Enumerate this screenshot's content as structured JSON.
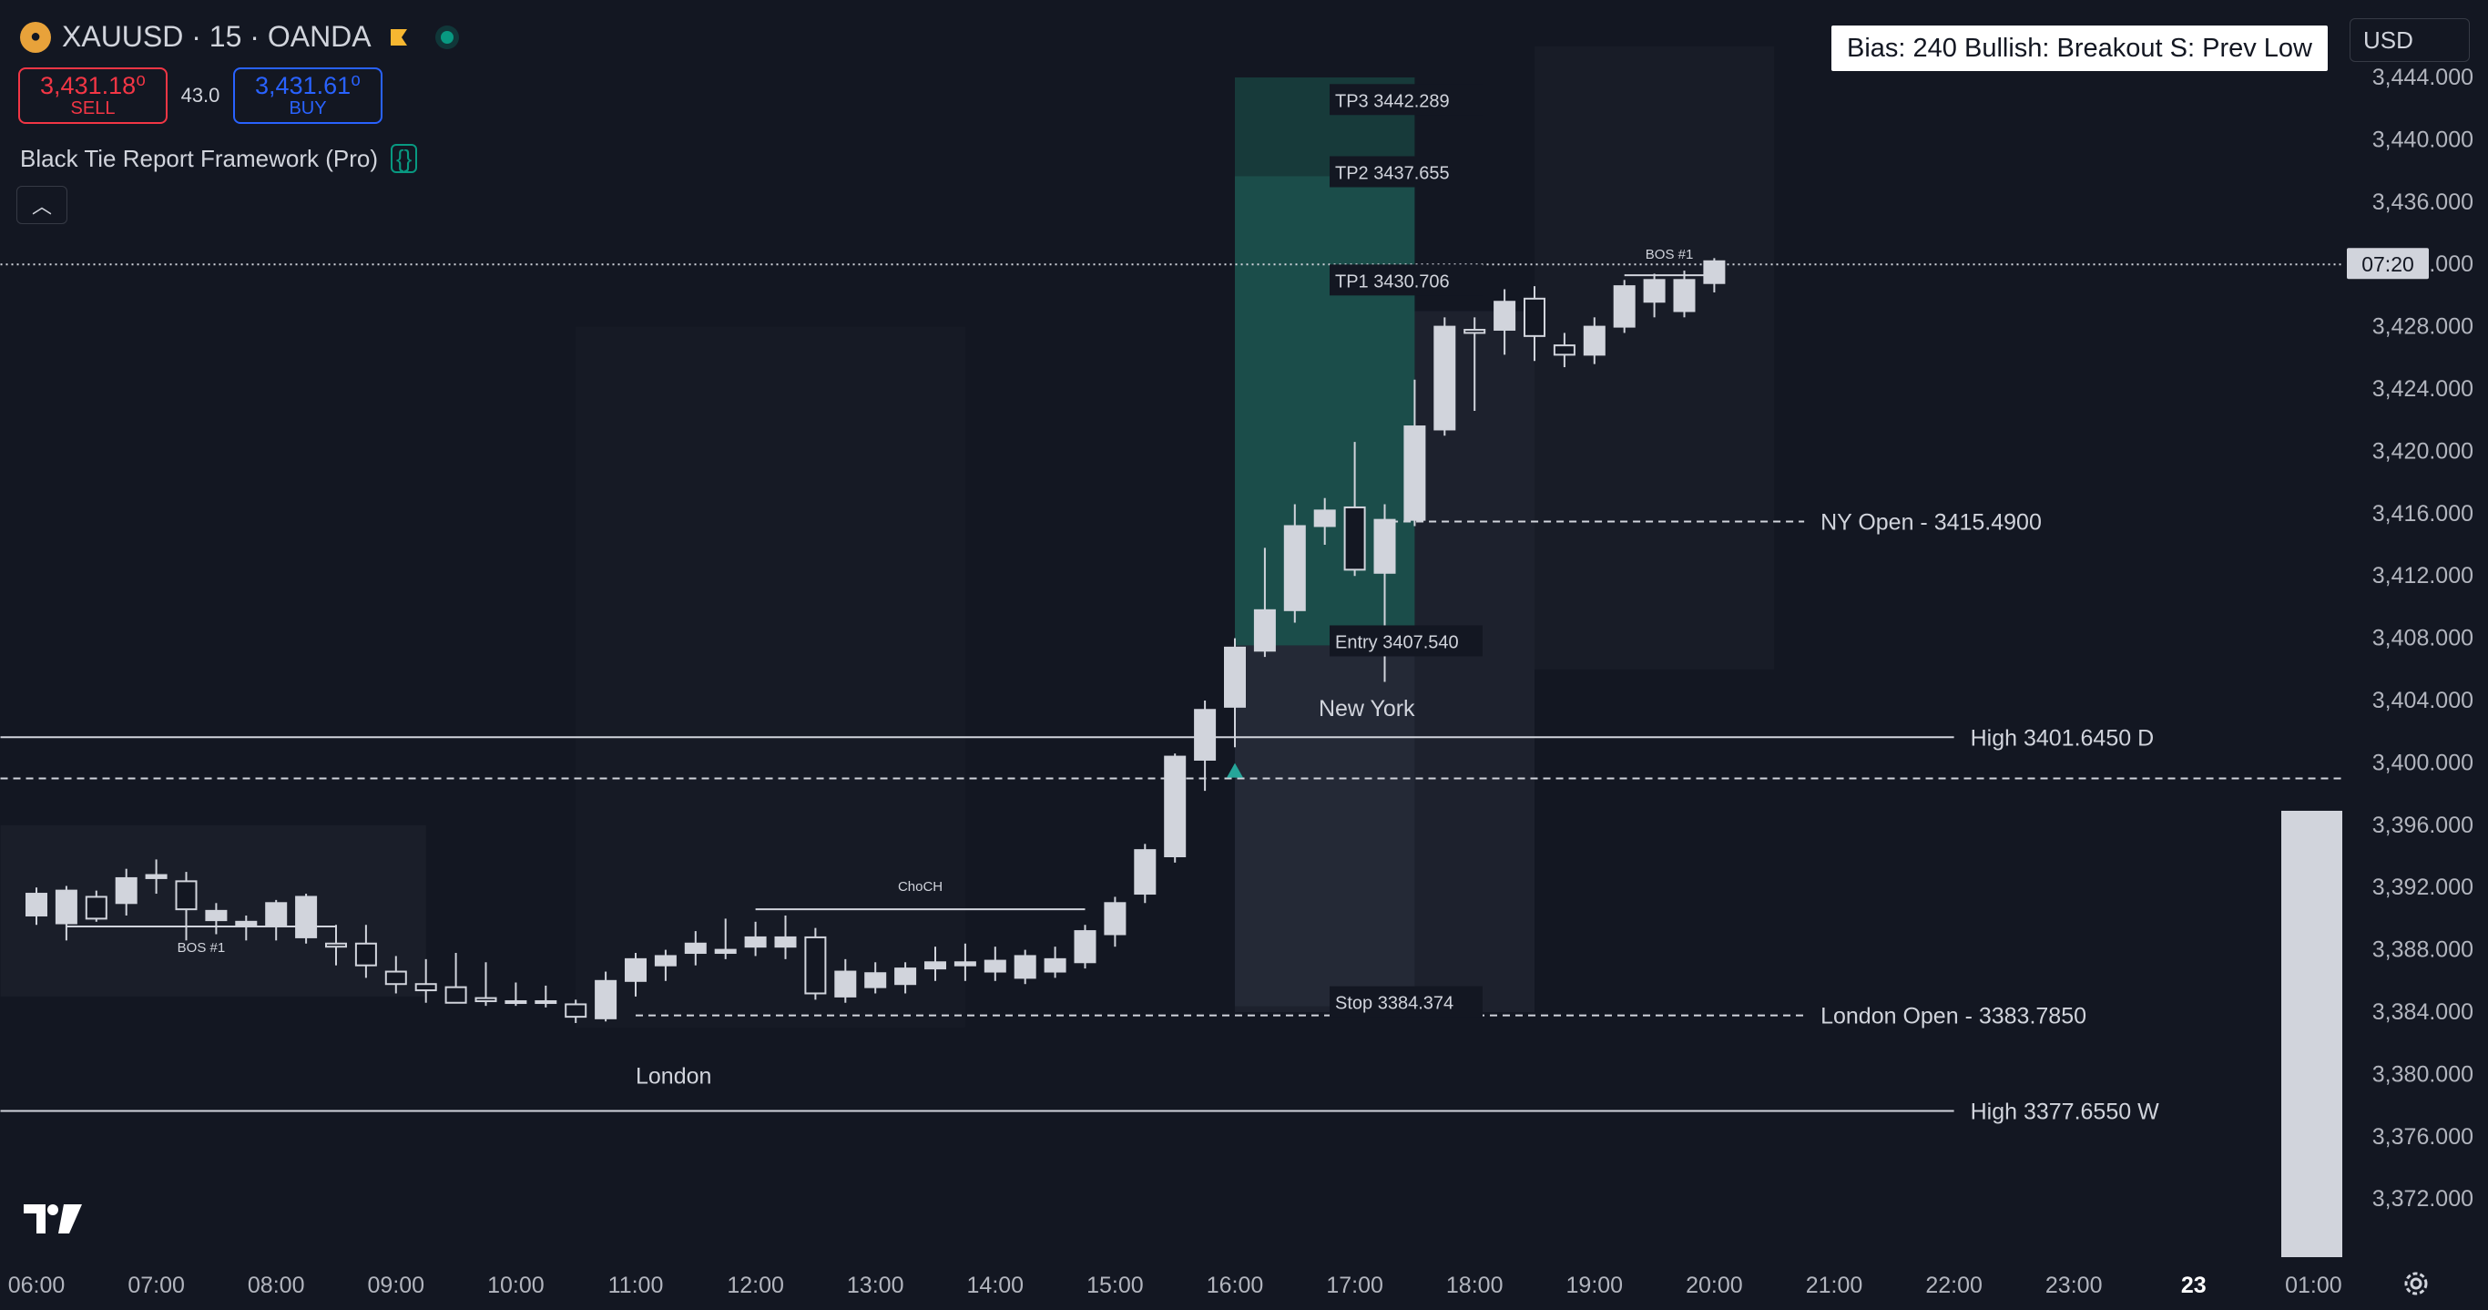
{
  "header": {
    "symbol": "XAUUSD · 15 · OANDA",
    "symbol_icon": "gold-coin-icon",
    "live_icon": "market-open-dot-icon"
  },
  "trade": {
    "sell_price": "3,431.18⁰",
    "sell_label": "SELL",
    "spread": "43.0",
    "buy_price": "3,431.61⁰",
    "buy_label": "BUY"
  },
  "indicator": {
    "name": "Black Tie Report Framework (Pro)",
    "icon": "script-braces-icon"
  },
  "bias_box": "Bias: 240  Bullish: Breakout  S: Prev Low",
  "currency": "USD",
  "countdown": "07:20",
  "colors": {
    "background": "#131722",
    "text": "#d1d4dc",
    "sell": "#f23645",
    "buy": "#2962ff",
    "accent_green": "#089981",
    "candle": "#d1d4dc",
    "tp_zone": "#1b4d4a"
  },
  "chart_data": {
    "type": "candlestick",
    "symbol": "XAUUSD",
    "timeframe": "15",
    "ylim": [
      3368,
      3446
    ],
    "y_ticks": [
      "3,444.000",
      "3,440.000",
      "3,436.000",
      "3,432.000",
      "3,428.000",
      "3,424.000",
      "3,420.000",
      "3,416.000",
      "3,412.000",
      "3,408.000",
      "3,404.000",
      "3,400.000",
      "3,396.000",
      "3,392.000",
      "3,388.000",
      "3,384.000",
      "3,380.000",
      "3,376.000",
      "3,372.000"
    ],
    "y_tick_values": [
      3444,
      3440,
      3436,
      3432,
      3428,
      3424,
      3420,
      3416,
      3412,
      3408,
      3404,
      3400,
      3396,
      3392,
      3388,
      3384,
      3380,
      3376,
      3372
    ],
    "x_ticks": [
      "06:00",
      "07:00",
      "08:00",
      "09:00",
      "10:00",
      "11:00",
      "12:00",
      "13:00",
      "14:00",
      "15:00",
      "16:00",
      "17:00",
      "18:00",
      "19:00",
      "20:00",
      "21:00",
      "22:00",
      "23:00",
      "23",
      "01:00"
    ],
    "x_tick_hours": [
      6,
      7,
      8,
      9,
      10,
      11,
      12,
      13,
      14,
      15,
      16,
      17,
      18,
      19,
      20,
      21,
      22,
      23,
      24,
      25
    ],
    "candles": [
      {
        "t": 6.0,
        "o": 3390.2,
        "h": 3392.0,
        "l": 3389.6,
        "c": 3391.6
      },
      {
        "t": 6.25,
        "o": 3389.7,
        "h": 3392.1,
        "l": 3388.6,
        "c": 3391.8
      },
      {
        "t": 6.5,
        "o": 3391.4,
        "h": 3391.8,
        "l": 3389.8,
        "c": 3390.0
      },
      {
        "t": 6.75,
        "o": 3391.0,
        "h": 3393.2,
        "l": 3390.2,
        "c": 3392.6
      },
      {
        "t": 7.0,
        "o": 3392.6,
        "h": 3393.8,
        "l": 3391.6,
        "c": 3392.8
      },
      {
        "t": 7.25,
        "o": 3392.4,
        "h": 3393.0,
        "l": 3388.6,
        "c": 3390.6
      },
      {
        "t": 7.5,
        "o": 3389.9,
        "h": 3391.0,
        "l": 3389.0,
        "c": 3390.5
      },
      {
        "t": 7.75,
        "o": 3389.6,
        "h": 3390.2,
        "l": 3388.6,
        "c": 3389.8
      },
      {
        "t": 8.0,
        "o": 3389.6,
        "h": 3391.2,
        "l": 3388.6,
        "c": 3391.0
      },
      {
        "t": 8.25,
        "o": 3388.8,
        "h": 3391.6,
        "l": 3388.4,
        "c": 3391.4
      },
      {
        "t": 8.5,
        "o": 3388.4,
        "h": 3389.6,
        "l": 3387.0,
        "c": 3388.2
      },
      {
        "t": 8.75,
        "o": 3388.4,
        "h": 3389.6,
        "l": 3386.2,
        "c": 3387.0
      },
      {
        "t": 9.0,
        "o": 3386.6,
        "h": 3387.6,
        "l": 3385.2,
        "c": 3385.8
      },
      {
        "t": 9.25,
        "o": 3385.8,
        "h": 3387.4,
        "l": 3384.6,
        "c": 3385.4
      },
      {
        "t": 9.5,
        "o": 3385.6,
        "h": 3387.8,
        "l": 3384.6,
        "c": 3384.6
      },
      {
        "t": 9.75,
        "o": 3384.9,
        "h": 3387.2,
        "l": 3384.4,
        "c": 3384.7
      },
      {
        "t": 10.0,
        "o": 3384.7,
        "h": 3385.9,
        "l": 3384.4,
        "c": 3384.7
      },
      {
        "t": 10.25,
        "o": 3384.6,
        "h": 3385.7,
        "l": 3384.3,
        "c": 3384.7
      },
      {
        "t": 10.5,
        "o": 3384.5,
        "h": 3384.8,
        "l": 3383.3,
        "c": 3383.7
      },
      {
        "t": 10.75,
        "o": 3383.6,
        "h": 3386.6,
        "l": 3383.4,
        "c": 3386.0
      },
      {
        "t": 11.0,
        "o": 3386.0,
        "h": 3387.8,
        "l": 3385.0,
        "c": 3387.4
      },
      {
        "t": 11.25,
        "o": 3387.0,
        "h": 3388.0,
        "l": 3386.0,
        "c": 3387.6
      },
      {
        "t": 11.5,
        "o": 3387.8,
        "h": 3389.2,
        "l": 3387.0,
        "c": 3388.4
      },
      {
        "t": 11.75,
        "o": 3387.8,
        "h": 3390.0,
        "l": 3387.4,
        "c": 3388.0
      },
      {
        "t": 12.0,
        "o": 3388.2,
        "h": 3389.8,
        "l": 3387.6,
        "c": 3388.8
      },
      {
        "t": 12.25,
        "o": 3388.2,
        "h": 3390.2,
        "l": 3387.4,
        "c": 3388.8
      },
      {
        "t": 12.5,
        "o": 3388.8,
        "h": 3389.4,
        "l": 3384.8,
        "c": 3385.2
      },
      {
        "t": 12.75,
        "o": 3385.0,
        "h": 3387.4,
        "l": 3384.6,
        "c": 3386.6
      },
      {
        "t": 13.0,
        "o": 3385.6,
        "h": 3387.2,
        "l": 3385.2,
        "c": 3386.5
      },
      {
        "t": 13.25,
        "o": 3385.8,
        "h": 3387.2,
        "l": 3385.2,
        "c": 3386.8
      },
      {
        "t": 13.5,
        "o": 3386.8,
        "h": 3388.2,
        "l": 3386.0,
        "c": 3387.2
      },
      {
        "t": 13.75,
        "o": 3387.0,
        "h": 3388.4,
        "l": 3386.0,
        "c": 3387.2
      },
      {
        "t": 14.0,
        "o": 3386.6,
        "h": 3388.2,
        "l": 3386.0,
        "c": 3387.3
      },
      {
        "t": 14.25,
        "o": 3386.2,
        "h": 3388.0,
        "l": 3385.8,
        "c": 3387.6
      },
      {
        "t": 14.5,
        "o": 3386.6,
        "h": 3388.2,
        "l": 3386.2,
        "c": 3387.4
      },
      {
        "t": 14.75,
        "o": 3387.2,
        "h": 3389.6,
        "l": 3386.8,
        "c": 3389.2
      },
      {
        "t": 15.0,
        "o": 3389.0,
        "h": 3391.4,
        "l": 3388.2,
        "c": 3391.0
      },
      {
        "t": 15.25,
        "o": 3391.6,
        "h": 3394.8,
        "l": 3391.0,
        "c": 3394.4
      },
      {
        "t": 15.5,
        "o": 3394.0,
        "h": 3400.6,
        "l": 3393.6,
        "c": 3400.4
      },
      {
        "t": 15.75,
        "o": 3400.2,
        "h": 3404.0,
        "l": 3398.2,
        "c": 3403.4
      },
      {
        "t": 16.0,
        "o": 3403.6,
        "h": 3408.0,
        "l": 3401.0,
        "c": 3407.4
      },
      {
        "t": 16.25,
        "o": 3407.2,
        "h": 3413.8,
        "l": 3406.8,
        "c": 3409.8
      },
      {
        "t": 16.5,
        "o": 3409.8,
        "h": 3416.6,
        "l": 3409.0,
        "c": 3415.2
      },
      {
        "t": 16.75,
        "o": 3415.2,
        "h": 3417.0,
        "l": 3414.0,
        "c": 3416.2
      },
      {
        "t": 17.0,
        "o": 3416.4,
        "h": 3420.6,
        "l": 3412.0,
        "c": 3412.4
      },
      {
        "t": 17.25,
        "o": 3412.2,
        "h": 3416.6,
        "l": 3405.2,
        "c": 3415.6
      },
      {
        "t": 17.5,
        "o": 3415.6,
        "h": 3424.6,
        "l": 3415.2,
        "c": 3421.6
      },
      {
        "t": 17.75,
        "o": 3421.4,
        "h": 3428.6,
        "l": 3421.0,
        "c": 3428.0
      },
      {
        "t": 18.0,
        "o": 3427.8,
        "h": 3428.6,
        "l": 3422.6,
        "c": 3427.6
      },
      {
        "t": 18.25,
        "o": 3427.8,
        "h": 3430.4,
        "l": 3426.2,
        "c": 3429.6
      },
      {
        "t": 18.5,
        "o": 3429.8,
        "h": 3430.6,
        "l": 3425.8,
        "c": 3427.4
      },
      {
        "t": 18.75,
        "o": 3426.8,
        "h": 3427.6,
        "l": 3425.4,
        "c": 3426.2
      },
      {
        "t": 19.0,
        "o": 3426.2,
        "h": 3428.6,
        "l": 3425.6,
        "c": 3428.0
      },
      {
        "t": 19.25,
        "o": 3428.0,
        "h": 3431.0,
        "l": 3427.6,
        "c": 3430.6
      },
      {
        "t": 19.5,
        "o": 3429.6,
        "h": 3431.4,
        "l": 3428.6,
        "c": 3431.0
      },
      {
        "t": 19.75,
        "o": 3429.0,
        "h": 3431.6,
        "l": 3428.6,
        "c": 3431.0
      },
      {
        "t": 20.0,
        "o": 3430.8,
        "h": 3432.4,
        "l": 3430.2,
        "c": 3432.2
      }
    ],
    "levels": [
      {
        "label": "High  3401.6450  D",
        "value": 3401.645,
        "style": "solid",
        "t_start": 5.7,
        "t_end": 22.0
      },
      {
        "label": "High  3377.6550  W",
        "value": 3377.655,
        "style": "solid",
        "t_start": 5.7,
        "t_end": 22.0
      },
      {
        "label": "NY Open - 3415.4900",
        "value": 3415.49,
        "style": "dashed",
        "t_start": 17.3,
        "t_end": 20.75
      },
      {
        "label": "London Open - 3383.7850",
        "value": 3383.785,
        "style": "dashed",
        "t_start": 11.0,
        "t_end": 20.75
      },
      {
        "label": "",
        "value": 3399.0,
        "style": "dashed",
        "t_start": 5.7,
        "t_end": 25.25
      },
      {
        "label": "",
        "value": 3432.0,
        "style": "dotted",
        "t_start": 5.7,
        "t_end": 25.25
      }
    ],
    "trade_zone": {
      "entry_label": "Entry 3407.540",
      "entry": 3407.54,
      "stop_label": "Stop 3384.374",
      "stop": 3384.374,
      "tp1_label": "TP1   3430.706",
      "tp1": 3430.706,
      "tp2_label": "TP2   3437.655",
      "tp2": 3437.655,
      "tp3_label": "TP3   3442.289",
      "tp3": 3442.289,
      "t_start": 16.0,
      "t_end": 17.5
    },
    "structure": [
      {
        "label": "BOS #1",
        "value": 3389.5,
        "t_start": 6.25,
        "t_end": 8.5
      },
      {
        "label": "ChoCH",
        "value": 3390.6,
        "t_start": 12.0,
        "t_end": 14.75
      },
      {
        "label": "BOS #1",
        "value": 3431.3,
        "t_start": 19.25,
        "t_end": 20.0
      }
    ],
    "sessions": [
      {
        "label": "London",
        "t_start": 10.5,
        "t_end": 13.75
      },
      {
        "label": "New York",
        "t_start": 16.0,
        "t_end": 17.75
      }
    ],
    "volume_bar": {
      "value": 0.72
    },
    "signal": {
      "type": "buy-arrow",
      "t": 16.0,
      "value": 3399.4
    }
  }
}
